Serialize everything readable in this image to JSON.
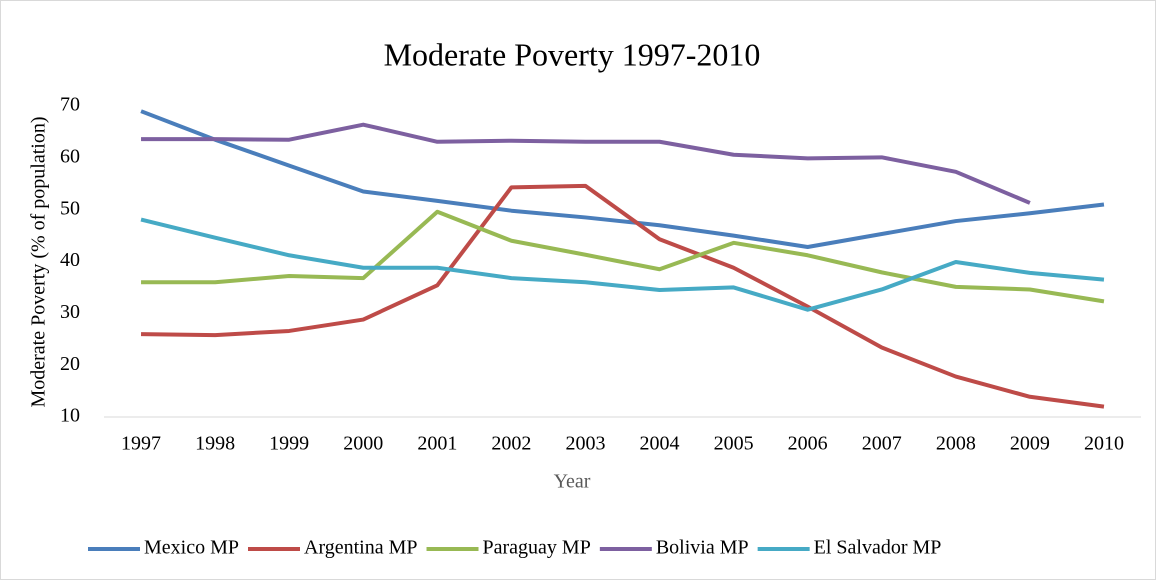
{
  "chart_data": {
    "type": "line",
    "title": "Moderate Poverty 1997-2010",
    "x_label": "Year",
    "y_label": "Moderate Poverty (% of population)",
    "categories": [
      "1997",
      "1998",
      "1999",
      "2000",
      "2001",
      "2002",
      "2003",
      "2004",
      "2005",
      "2006",
      "2007",
      "2008",
      "2009",
      "2010"
    ],
    "series": [
      {
        "name": "Mexico MP",
        "color": "#4a7ebb",
        "values": [
          69,
          63.5,
          58.5,
          53.5,
          51.7,
          49.8,
          48.5,
          47,
          45,
          42.8,
          45.3,
          47.8,
          49.3,
          51
        ]
      },
      {
        "name": "Argentina MP",
        "color": "#be4b48",
        "values": [
          26,
          25.8,
          26.6,
          28.8,
          35.4,
          54.3,
          54.6,
          44.3,
          38.8,
          31.3,
          23.4,
          17.8,
          13.9,
          12
        ]
      },
      {
        "name": "Paraguay MP",
        "color": "#98b954",
        "values": [
          36,
          36,
          37.2,
          36.8,
          49.6,
          44,
          41.3,
          38.5,
          43.6,
          41.2,
          37.9,
          35.1,
          34.6,
          32.3
        ]
      },
      {
        "name": "Bolivia MP",
        "color": "#7d60a0",
        "values": [
          63.6,
          63.6,
          63.5,
          66.4,
          63.1,
          63.3,
          63.1,
          63.1,
          60.6,
          59.9,
          60.1,
          57.3,
          51.3,
          null
        ]
      },
      {
        "name": "El Salvador MP",
        "color": "#46aac5",
        "values": [
          48.1,
          44.6,
          41.2,
          38.8,
          38.8,
          36.8,
          36,
          34.5,
          35,
          30.7,
          34.6,
          39.9,
          37.8,
          36.5
        ]
      }
    ],
    "ylim": [
      10,
      70
    ],
    "yticks": [
      10,
      20,
      30,
      40,
      50,
      60,
      70
    ],
    "grid": false,
    "legend": "bottom"
  }
}
